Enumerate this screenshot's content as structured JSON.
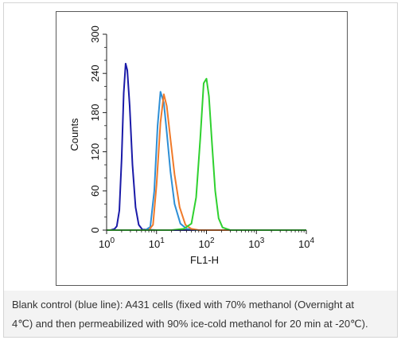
{
  "chart_data": {
    "type": "line",
    "xlabel": "FL1-H",
    "ylabel": "Counts",
    "x_scale": "log",
    "xlim": [
      1,
      10000
    ],
    "ylim": [
      0,
      300
    ],
    "x_ticks": [
      {
        "value": 1,
        "base": "10",
        "exp": "0"
      },
      {
        "value": 10,
        "base": "10",
        "exp": "1"
      },
      {
        "value": 100,
        "base": "10",
        "exp": "2"
      },
      {
        "value": 1000,
        "base": "10",
        "exp": "3"
      },
      {
        "value": 10000,
        "base": "10",
        "exp": "4"
      }
    ],
    "y_ticks": [
      "0",
      "60",
      "120",
      "180",
      "240",
      "300"
    ],
    "grid": false,
    "series": [
      {
        "color": "#1a1aa8",
        "points": [
          [
            1,
            0
          ],
          [
            1.2,
            0
          ],
          [
            1.45,
            2
          ],
          [
            1.6,
            6
          ],
          [
            1.8,
            30
          ],
          [
            2.0,
            110
          ],
          [
            2.2,
            210
          ],
          [
            2.4,
            255
          ],
          [
            2.6,
            245
          ],
          [
            2.9,
            190
          ],
          [
            3.3,
            100
          ],
          [
            3.8,
            35
          ],
          [
            4.4,
            8
          ],
          [
            5.2,
            1
          ],
          [
            10,
            0
          ],
          [
            10000,
            0
          ]
        ]
      },
      {
        "color": "#2e8fd6",
        "points": [
          [
            1,
            0
          ],
          [
            6,
            0
          ],
          [
            7.5,
            5
          ],
          [
            9,
            60
          ],
          [
            10.5,
            160
          ],
          [
            12,
            212
          ],
          [
            14,
            195
          ],
          [
            16,
            150
          ],
          [
            19,
            90
          ],
          [
            23,
            40
          ],
          [
            30,
            10
          ],
          [
            40,
            2
          ],
          [
            60,
            0
          ],
          [
            10000,
            0
          ]
        ]
      },
      {
        "color": "#f07a2a",
        "points": [
          [
            1,
            0
          ],
          [
            7,
            0
          ],
          [
            8.5,
            8
          ],
          [
            10,
            70
          ],
          [
            12,
            165
          ],
          [
            14,
            208
          ],
          [
            16,
            190
          ],
          [
            19,
            140
          ],
          [
            23,
            85
          ],
          [
            29,
            35
          ],
          [
            38,
            8
          ],
          [
            50,
            2
          ],
          [
            70,
            0
          ],
          [
            10000,
            0
          ]
        ]
      },
      {
        "color": "#2fd12f",
        "points": [
          [
            1,
            0
          ],
          [
            20,
            0
          ],
          [
            35,
            2
          ],
          [
            50,
            10
          ],
          [
            62,
            50
          ],
          [
            75,
            140
          ],
          [
            88,
            225
          ],
          [
            100,
            232
          ],
          [
            112,
            205
          ],
          [
            130,
            130
          ],
          [
            150,
            60
          ],
          [
            175,
            18
          ],
          [
            210,
            4
          ],
          [
            300,
            0
          ],
          [
            10000,
            0
          ]
        ]
      }
    ]
  },
  "caption": {
    "line1": "Blank control (blue line): A431 cells (fixed with 70% methanol (Overnight at",
    "line2": "4℃) and then permeabilized with 90% ice-cold methanol for 20 min at -20℃)."
  }
}
